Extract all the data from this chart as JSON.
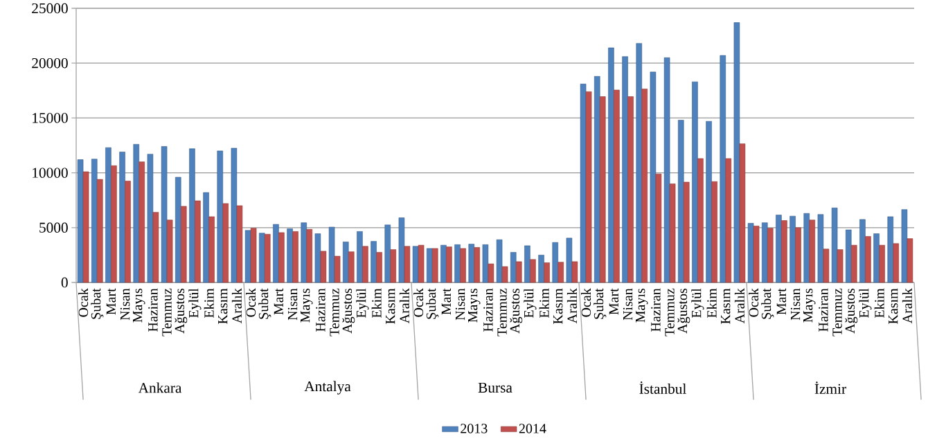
{
  "chart_data": {
    "type": "bar",
    "categories": [
      "Ocak",
      "Şubat",
      "Mart",
      "Nisan",
      "Mayıs",
      "Haziran",
      "Temmuz",
      "Ağustos",
      "Eylül",
      "Ekim",
      "Kasım",
      "Aralık",
      "Ocak",
      "Şubat",
      "Mart",
      "Nisan",
      "Mayıs",
      "Haziran",
      "Temmuz",
      "Ağustos",
      "Eylül",
      "Ekim",
      "Kasım",
      "Aralık",
      "Ocak",
      "Şubat",
      "Mart",
      "Nisan",
      "Mayıs",
      "Haziran",
      "Temmuz",
      "Ağustos",
      "Eylül",
      "Ekim",
      "Kasım",
      "Aralık",
      "Ocak",
      "Şubat",
      "Mart",
      "Nisan",
      "Mayıs",
      "Haziran",
      "Temmuz",
      "Ağustos",
      "Eylül",
      "Ekim",
      "Kasım",
      "Aralık",
      "Ocak",
      "Şubat",
      "Mart",
      "Nisan",
      "Mayıs",
      "Haziran",
      "Temmuz",
      "Ağustos",
      "Eylül",
      "Ekim",
      "Kasım",
      "Aralık"
    ],
    "series": [
      {
        "name": "2013",
        "color": "#4f81bd",
        "values": [
          11200,
          11250,
          12300,
          11900,
          12600,
          11700,
          12400,
          9600,
          12200,
          8200,
          12000,
          12250,
          4750,
          4500,
          5300,
          4900,
          5450,
          4450,
          5050,
          3700,
          4650,
          3750,
          5250,
          5900,
          3300,
          3100,
          3400,
          3450,
          3500,
          3450,
          3900,
          2750,
          3350,
          2500,
          3650,
          4050,
          18100,
          18800,
          21400,
          20600,
          21800,
          19200,
          20500,
          14800,
          18300,
          14700,
          20700,
          23700,
          5400,
          5450,
          6150,
          6050,
          6300,
          6200,
          6800,
          4800,
          5750,
          4450,
          6000,
          6650
        ]
      },
      {
        "name": "2014",
        "color": "#c0504d",
        "values": [
          10100,
          9400,
          10650,
          9250,
          11000,
          6400,
          5700,
          6950,
          7450,
          6000,
          7200,
          7000,
          4950,
          4400,
          4550,
          4650,
          4850,
          2850,
          2400,
          2800,
          3300,
          2750,
          3000,
          3300,
          3400,
          3100,
          3250,
          3100,
          3200,
          1700,
          1450,
          1900,
          2100,
          1800,
          1850,
          1900,
          17400,
          16950,
          17550,
          16950,
          17650,
          9900,
          9000,
          9150,
          11300,
          9200,
          11300,
          12650,
          5150,
          4950,
          5650,
          5000,
          5700,
          3050,
          3000,
          3400,
          4200,
          3400,
          3550,
          4000
        ]
      }
    ],
    "annotations": [
      "Ankara",
      "Antalya",
      "Bursa",
      "İstanbul",
      "İzmir"
    ],
    "ylim": [
      0,
      25000
    ],
    "yticks": [
      0,
      5000,
      10000,
      15000,
      20000,
      25000
    ],
    "grid": "y",
    "legend": "bottom"
  }
}
